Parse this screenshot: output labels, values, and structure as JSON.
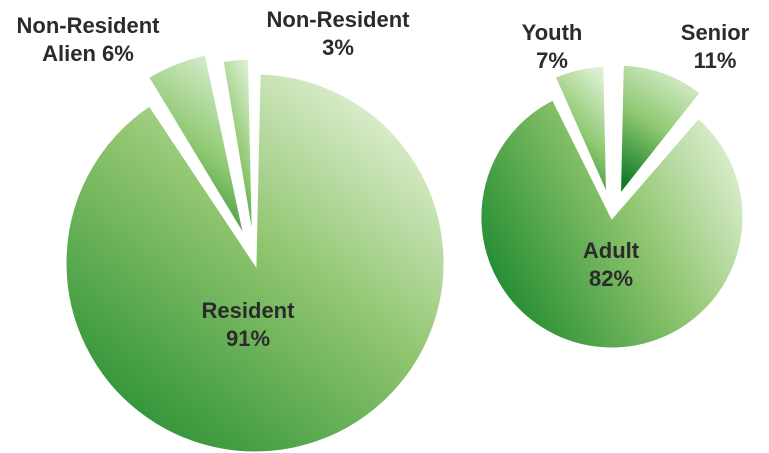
{
  "chart_data": [
    {
      "type": "pie",
      "categories": [
        "Resident",
        "Non-Resident Alien",
        "Non-Resident"
      ],
      "values": [
        91,
        6,
        3
      ],
      "labels": [
        {
          "line1": "Resident",
          "line2": "91%"
        },
        {
          "line1": "Non-Resident",
          "line2": "Alien 6%"
        },
        {
          "line1": "Non-Resident",
          "line2": "3%"
        }
      ],
      "exploded": [
        "Non-Resident Alien",
        "Non-Resident"
      ]
    },
    {
      "type": "pie",
      "categories": [
        "Adult",
        "Youth",
        "Senior"
      ],
      "values": [
        82,
        7,
        11
      ],
      "labels": [
        {
          "line1": "Adult",
          "line2": "82%"
        },
        {
          "line1": "Youth",
          "line2": "7%"
        },
        {
          "line1": "Senior",
          "line2": "11%"
        }
      ],
      "exploded": [
        "Youth",
        "Senior"
      ]
    }
  ],
  "colors": {
    "main_dark": "#1f8a2e",
    "main_light": "#e9f4df",
    "slice_dark": "#0d7a24",
    "slice_light": "#dcefd2"
  }
}
